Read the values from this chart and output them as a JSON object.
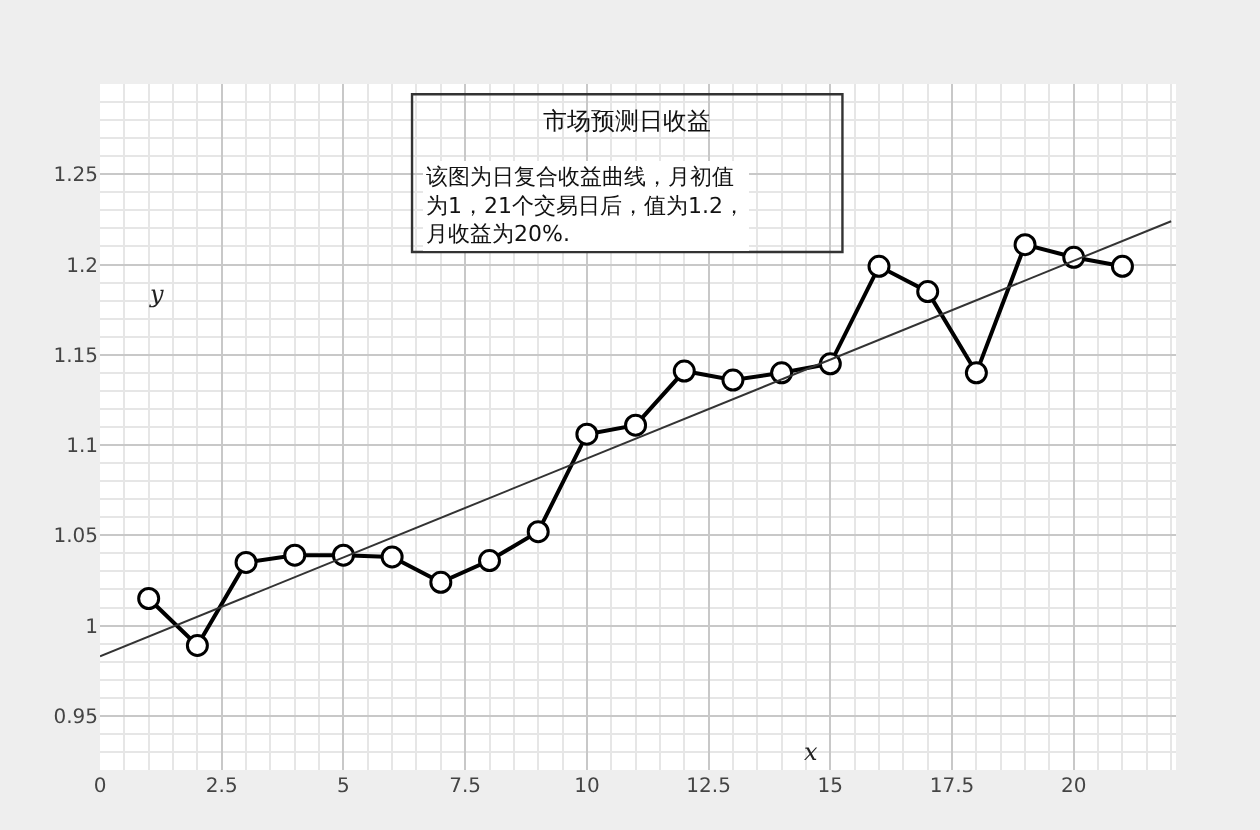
{
  "chart_data": {
    "type": "line",
    "title": "市场预测日收益",
    "annotations": [
      "该图为日复合收益曲线，月初值为1，21个交易日后，值为1.2，月收益为20%."
    ],
    "xlabel": "x",
    "ylabel": "y",
    "x": [
      1,
      2,
      3,
      4,
      5,
      6,
      7,
      8,
      9,
      10,
      11,
      12,
      13,
      14,
      15,
      16,
      17,
      18,
      19,
      20,
      21
    ],
    "series": [
      {
        "color": "#000000",
        "marker": "circle",
        "values": [
          1.015,
          0.989,
          1.035,
          1.039,
          1.039,
          1.038,
          1.024,
          1.036,
          1.052,
          1.106,
          1.111,
          1.141,
          1.136,
          1.14,
          1.145,
          1.199,
          1.185,
          1.14,
          1.211,
          1.204,
          1.199
        ]
      },
      {
        "color": "#333333",
        "marker": "none",
        "x": [
          0,
          22
        ],
        "values": [
          0.983,
          1.224
        ]
      }
    ],
    "xlim": [
      0,
      22.1
    ],
    "ylim": [
      0.92,
      1.3
    ],
    "xticks": [
      0,
      {
        "value": 2.5,
        "label": "2.5"
      },
      5,
      {
        "value": 7.5,
        "label": "7.5"
      },
      10,
      {
        "value": 12.5,
        "label": "12.5"
      },
      15,
      {
        "value": 17.5,
        "label": "17.5"
      },
      20
    ],
    "yticks": [
      0.95,
      1,
      1.05,
      1.1,
      1.15,
      1.2,
      1.25
    ],
    "grid": true
  }
}
